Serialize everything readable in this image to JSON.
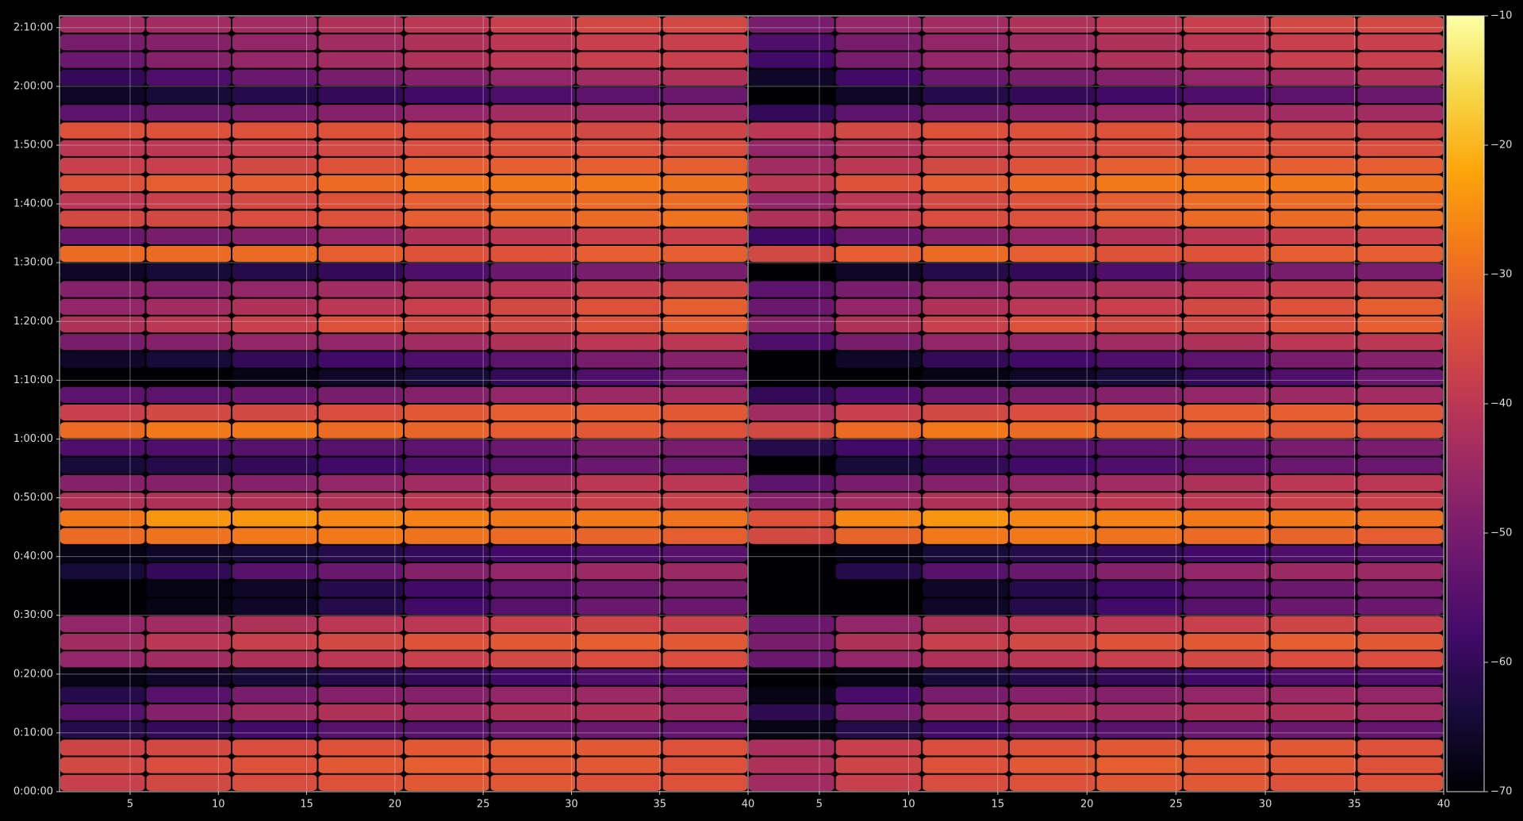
{
  "chart_data": [
    {
      "type": "heatmap",
      "xbins": [
        1,
        5.875,
        10.75,
        15.625,
        20.5,
        25.375,
        30.25,
        35.125,
        40
      ],
      "ybins": [
        0,
        180,
        360,
        540,
        720,
        900,
        1080,
        1260,
        1440,
        1620,
        1800,
        1980,
        2160,
        2340,
        2520,
        2700,
        2880,
        3060,
        3240,
        3420,
        3600,
        3780,
        3960,
        4140,
        4320,
        4500,
        4680,
        4860,
        5040,
        5220,
        5400,
        5580,
        5760,
        5940,
        6120,
        6300,
        6480,
        6660,
        6840,
        7020,
        7200,
        7380,
        7560,
        7740,
        7920
      ],
      "xlim": [
        1,
        40
      ],
      "ylim": [
        0,
        7920
      ],
      "xticks": [
        5,
        10,
        15,
        20,
        25,
        30,
        35,
        40
      ],
      "yticks": [
        {
          "value": 0,
          "label": "0:00:00"
        },
        {
          "value": 600,
          "label": "0:10:00"
        },
        {
          "value": 1200,
          "label": "0:20:00"
        },
        {
          "value": 1800,
          "label": "0:30:00"
        },
        {
          "value": 2400,
          "label": "0:40:00"
        },
        {
          "value": 3000,
          "label": "0:50:00"
        },
        {
          "value": 3600,
          "label": "1:00:00"
        },
        {
          "value": 4200,
          "label": "1:10:00"
        },
        {
          "value": 4800,
          "label": "1:20:00"
        },
        {
          "value": 5400,
          "label": "1:30:00"
        },
        {
          "value": 6000,
          "label": "1:40:00"
        },
        {
          "value": 6600,
          "label": "1:50:00"
        },
        {
          "value": 7200,
          "label": "2:00:00"
        },
        {
          "value": 7800,
          "label": "2:10:00"
        }
      ],
      "grid": true,
      "values": [
        [
          -38,
          -36,
          -35,
          -34,
          -33,
          -33,
          -34,
          -34
        ],
        [
          -36,
          -35,
          -34,
          -33,
          -32,
          -33,
          -33,
          -34
        ],
        [
          -37,
          -36,
          -35,
          -34,
          -33,
          -32,
          -33,
          -34
        ],
        [
          -62,
          -60,
          -58,
          -55,
          -55,
          -52,
          -52,
          -53
        ],
        [
          -55,
          -48,
          -44,
          -42,
          -44,
          -42,
          -42,
          -44
        ],
        [
          -62,
          -55,
          -50,
          -48,
          -48,
          -46,
          -45,
          -46
        ],
        [
          -68,
          -66,
          -64,
          -62,
          -60,
          -58,
          -56,
          -56
        ],
        [
          -46,
          -44,
          -42,
          -40,
          -38,
          -36,
          -35,
          -35
        ],
        [
          -44,
          -40,
          -38,
          -36,
          -34,
          -33,
          -32,
          -33
        ],
        [
          -46,
          -44,
          -42,
          -40,
          -40,
          -38,
          -37,
          -38
        ],
        [
          -70,
          -68,
          -66,
          -62,
          -58,
          -55,
          -52,
          -52
        ],
        [
          -70,
          -68,
          -66,
          -62,
          -58,
          -54,
          -52,
          -50
        ],
        [
          -64,
          -60,
          -55,
          -52,
          -48,
          -46,
          -45,
          -45
        ],
        [
          -68,
          -66,
          -64,
          -62,
          -60,
          -58,
          -56,
          -55
        ],
        [
          -30,
          -29,
          -28,
          -28,
          -29,
          -30,
          -31,
          -32
        ],
        [
          -28,
          -24,
          -24,
          -26,
          -27,
          -28,
          -28,
          -29
        ],
        [
          -42,
          -42,
          -42,
          -42,
          -40,
          -40,
          -38,
          -38
        ],
        [
          -48,
          -48,
          -48,
          -46,
          -44,
          -42,
          -40,
          -40
        ],
        [
          -64,
          -62,
          -60,
          -58,
          -56,
          -54,
          -52,
          -52
        ],
        [
          -56,
          -56,
          -55,
          -55,
          -54,
          -52,
          -50,
          -50
        ],
        [
          -30,
          -28,
          -28,
          -30,
          -31,
          -32,
          -33,
          -34
        ],
        [
          -38,
          -36,
          -36,
          -35,
          -33,
          -32,
          -32,
          -33
        ],
        [
          -54,
          -54,
          -52,
          -50,
          -48,
          -46,
          -45,
          -44
        ],
        [
          -70,
          -70,
          -68,
          -66,
          -64,
          -60,
          -56,
          -52
        ],
        [
          -66,
          -64,
          -60,
          -58,
          -56,
          -54,
          -50,
          -48
        ],
        [
          -50,
          -48,
          -46,
          -46,
          -44,
          -42,
          -40,
          -40
        ],
        [
          -42,
          -40,
          -38,
          -34,
          -36,
          -36,
          -34,
          -32
        ],
        [
          -46,
          -44,
          -42,
          -40,
          -38,
          -36,
          -34,
          -32
        ],
        [
          -48,
          -48,
          -46,
          -44,
          -42,
          -40,
          -38,
          -36
        ],
        [
          -66,
          -64,
          -62,
          -60,
          -56,
          -52,
          -50,
          -50
        ],
        [
          -30,
          -30,
          -30,
          -32,
          -34,
          -34,
          -32,
          -32
        ],
        [
          -52,
          -50,
          -48,
          -46,
          -42,
          -40,
          -38,
          -38
        ],
        [
          -36,
          -36,
          -35,
          -34,
          -32,
          -30,
          -30,
          -29
        ],
        [
          -40,
          -38,
          -36,
          -34,
          -32,
          -30,
          -30,
          -30
        ],
        [
          -34,
          -32,
          -32,
          -30,
          -28,
          -28,
          -28,
          -29
        ],
        [
          -38,
          -38,
          -36,
          -34,
          -32,
          -32,
          -32,
          -32
        ],
        [
          -40,
          -40,
          -38,
          -36,
          -35,
          -34,
          -34,
          -35
        ],
        [
          -34,
          -34,
          -34,
          -34,
          -34,
          -35,
          -36,
          -37
        ],
        [
          -54,
          -52,
          -50,
          -48,
          -46,
          -44,
          -44,
          -44
        ],
        [
          -66,
          -64,
          -62,
          -60,
          -58,
          -56,
          -54,
          -52
        ],
        [
          -60,
          -56,
          -52,
          -50,
          -48,
          -46,
          -44,
          -42
        ],
        [
          -52,
          -48,
          -46,
          -44,
          -42,
          -40,
          -38,
          -38
        ],
        [
          -50,
          -48,
          -46,
          -44,
          -42,
          -40,
          -38,
          -38
        ],
        [
          -44,
          -44,
          -44,
          -42,
          -40,
          -38,
          -36,
          -36
        ]
      ]
    },
    {
      "type": "heatmap",
      "xbins": [
        1,
        5.875,
        10.75,
        15.625,
        20.5,
        25.375,
        30.25,
        35.125,
        40
      ],
      "ybins": [
        0,
        180,
        360,
        540,
        720,
        900,
        1080,
        1260,
        1440,
        1620,
        1800,
        1980,
        2160,
        2340,
        2520,
        2700,
        2880,
        3060,
        3240,
        3420,
        3600,
        3780,
        3960,
        4140,
        4320,
        4500,
        4680,
        4860,
        5040,
        5220,
        5400,
        5580,
        5760,
        5940,
        6120,
        6300,
        6480,
        6660,
        6840,
        7020,
        7200,
        7380,
        7560,
        7740,
        7920
      ],
      "xlim": [
        1,
        40
      ],
      "ylim": [
        0,
        7920
      ],
      "xticks": [
        5,
        10,
        15,
        20,
        25,
        30,
        35,
        40
      ],
      "grid": true,
      "values": [
        [
          -44,
          -38,
          -35,
          -34,
          -33,
          -33,
          -34,
          -34
        ],
        [
          -42,
          -37,
          -34,
          -33,
          -32,
          -33,
          -33,
          -34
        ],
        [
          -43,
          -38,
          -35,
          -34,
          -33,
          -32,
          -33,
          -34
        ],
        [
          -68,
          -62,
          -58,
          -55,
          -55,
          -52,
          -52,
          -53
        ],
        [
          -61,
          -50,
          -44,
          -42,
          -44,
          -42,
          -42,
          -44
        ],
        [
          -68,
          -57,
          -50,
          -48,
          -48,
          -46,
          -45,
          -46
        ],
        [
          -70,
          -68,
          -64,
          -62,
          -60,
          -58,
          -56,
          -56
        ],
        [
          -52,
          -46,
          -42,
          -40,
          -38,
          -36,
          -35,
          -35
        ],
        [
          -50,
          -42,
          -38,
          -36,
          -34,
          -33,
          -32,
          -33
        ],
        [
          -52,
          -46,
          -42,
          -40,
          -40,
          -38,
          -37,
          -38
        ],
        [
          -70,
          -70,
          -66,
          -62,
          -58,
          -55,
          -52,
          -52
        ],
        [
          -70,
          -70,
          -66,
          -62,
          -58,
          -54,
          -52,
          -50
        ],
        [
          -70,
          -62,
          -55,
          -52,
          -48,
          -46,
          -45,
          -45
        ],
        [
          -70,
          -68,
          -64,
          -62,
          -60,
          -58,
          -56,
          -55
        ],
        [
          -36,
          -31,
          -28,
          -28,
          -29,
          -30,
          -31,
          -32
        ],
        [
          -34,
          -26,
          -24,
          -26,
          -27,
          -28,
          -28,
          -29
        ],
        [
          -48,
          -44,
          -42,
          -42,
          -40,
          -40,
          -38,
          -38
        ],
        [
          -54,
          -50,
          -48,
          -46,
          -44,
          -42,
          -40,
          -40
        ],
        [
          -70,
          -64,
          -60,
          -58,
          -56,
          -54,
          -52,
          -52
        ],
        [
          -62,
          -58,
          -55,
          -55,
          -54,
          -52,
          -50,
          -50
        ],
        [
          -36,
          -30,
          -28,
          -30,
          -31,
          -32,
          -33,
          -34
        ],
        [
          -44,
          -38,
          -36,
          -35,
          -33,
          -32,
          -32,
          -33
        ],
        [
          -60,
          -56,
          -52,
          -50,
          -48,
          -46,
          -45,
          -44
        ],
        [
          -70,
          -70,
          -68,
          -66,
          -64,
          -60,
          -56,
          -52
        ],
        [
          -70,
          -66,
          -60,
          -58,
          -56,
          -54,
          -50,
          -48
        ],
        [
          -56,
          -50,
          -46,
          -46,
          -44,
          -42,
          -40,
          -40
        ],
        [
          -48,
          -42,
          -38,
          -34,
          -36,
          -36,
          -34,
          -32
        ],
        [
          -52,
          -46,
          -42,
          -40,
          -38,
          -36,
          -34,
          -32
        ],
        [
          -54,
          -50,
          -46,
          -44,
          -42,
          -40,
          -38,
          -36
        ],
        [
          -70,
          -66,
          -62,
          -60,
          -56,
          -52,
          -50,
          -50
        ],
        [
          -36,
          -32,
          -30,
          -32,
          -34,
          -34,
          -32,
          -32
        ],
        [
          -58,
          -52,
          -48,
          -46,
          -42,
          -40,
          -38,
          -38
        ],
        [
          -42,
          -38,
          -35,
          -34,
          -32,
          -30,
          -30,
          -29
        ],
        [
          -46,
          -40,
          -36,
          -34,
          -32,
          -30,
          -30,
          -30
        ],
        [
          -40,
          -34,
          -32,
          -30,
          -28,
          -28,
          -28,
          -29
        ],
        [
          -44,
          -40,
          -36,
          -34,
          -32,
          -32,
          -32,
          -32
        ],
        [
          -46,
          -42,
          -38,
          -36,
          -35,
          -34,
          -34,
          -35
        ],
        [
          -40,
          -36,
          -34,
          -34,
          -34,
          -35,
          -36,
          -37
        ],
        [
          -60,
          -54,
          -50,
          -48,
          -46,
          -44,
          -44,
          -44
        ],
        [
          -70,
          -66,
          -62,
          -60,
          -58,
          -56,
          -54,
          -52
        ],
        [
          -66,
          -58,
          -52,
          -50,
          -48,
          -46,
          -44,
          -42
        ],
        [
          -58,
          -50,
          -46,
          -44,
          -42,
          -40,
          -38,
          -38
        ],
        [
          -56,
          -50,
          -46,
          -44,
          -42,
          -40,
          -38,
          -38
        ],
        [
          -50,
          -46,
          -44,
          -42,
          -40,
          -38,
          -36,
          -36
        ]
      ]
    },
    {
      "type": "colorbar",
      "clim": [
        -70,
        -10
      ],
      "ticks": [
        {
          "value": -70,
          "label": "−70"
        },
        {
          "value": -60,
          "label": "−60"
        },
        {
          "value": -50,
          "label": "−50"
        },
        {
          "value": -40,
          "label": "−40"
        },
        {
          "value": -30,
          "label": "−30"
        },
        {
          "value": -20,
          "label": "−20"
        },
        {
          "value": -10,
          "label": "−10"
        }
      ]
    }
  ]
}
